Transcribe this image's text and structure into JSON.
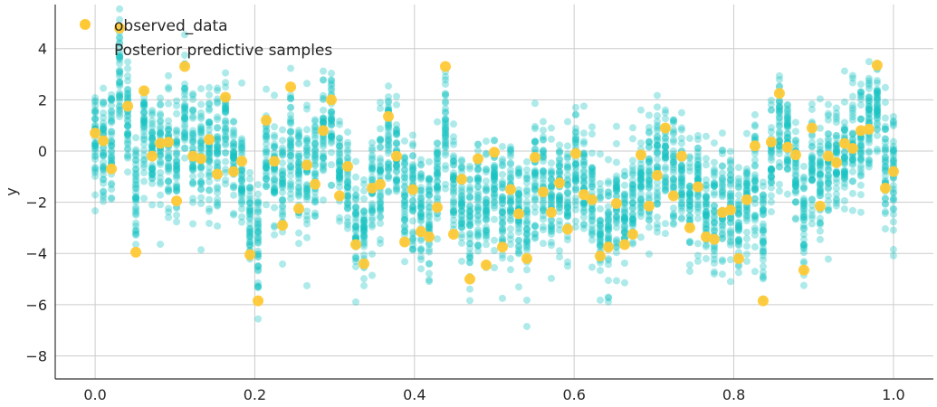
{
  "chart_data": {
    "type": "scatter",
    "title": "",
    "xlabel": "",
    "ylabel": "y",
    "xlim": [
      -0.05,
      1.05
    ],
    "ylim": [
      -8.9,
      5.72
    ],
    "xticks": [
      "0.0",
      "0.2",
      "0.4",
      "0.6",
      "0.8",
      "1.0"
    ],
    "yticks": [
      "4",
      "2",
      "0",
      "−2",
      "−4",
      "−6",
      "−8"
    ],
    "ytick_values": [
      4,
      2,
      0,
      -2,
      -4,
      -6,
      -8
    ],
    "xtick_values": [
      0,
      0.2,
      0.4,
      0.6,
      0.8,
      1.0
    ],
    "grid": true,
    "legend_position": "top-left",
    "series": [
      {
        "name": "observed_data",
        "color": "#FFC936",
        "x_range": [
          0,
          1
        ],
        "y": [
          0.7,
          0.4,
          -0.7,
          4.8,
          1.75,
          -3.95,
          2.35,
          -0.2,
          0.3,
          0.35,
          -1.95,
          3.3,
          -0.2,
          -0.3,
          0.45,
          -0.9,
          2.1,
          -0.8,
          -0.4,
          -4.05,
          -5.85,
          1.2,
          -0.4,
          -2.9,
          2.5,
          -2.25,
          -0.55,
          -1.3,
          0.8,
          2.0,
          -1.75,
          -0.6,
          -3.65,
          -4.4,
          -1.45,
          -1.3,
          1.35,
          -0.2,
          -3.55,
          -1.5,
          -3.15,
          -3.35,
          -2.2,
          3.3,
          -3.25,
          -1.1,
          -5.0,
          -0.3,
          -4.45,
          -0.05,
          -3.75,
          -1.5,
          -2.45,
          -4.2,
          -0.25,
          -1.6,
          -2.4,
          -1.25,
          -3.05,
          -0.1,
          -1.7,
          -1.9,
          -4.1,
          -3.75,
          -2.05,
          -3.65,
          -3.25,
          -0.15,
          -2.15,
          -0.95,
          0.9,
          -1.75,
          -0.2,
          -3.0,
          -1.4,
          -3.35,
          -3.45,
          -2.4,
          -2.3,
          -4.2,
          -1.9,
          0.2,
          -5.85,
          0.35,
          2.25,
          0.15,
          -0.15,
          -4.65,
          0.9,
          -2.15,
          -0.2,
          -0.45,
          0.3,
          0.1,
          0.8,
          0.85,
          3.35,
          -1.45,
          -0.8
        ]
      },
      {
        "name": "Posterior predictive samples",
        "color": "#17C3C3"
      }
    ]
  }
}
